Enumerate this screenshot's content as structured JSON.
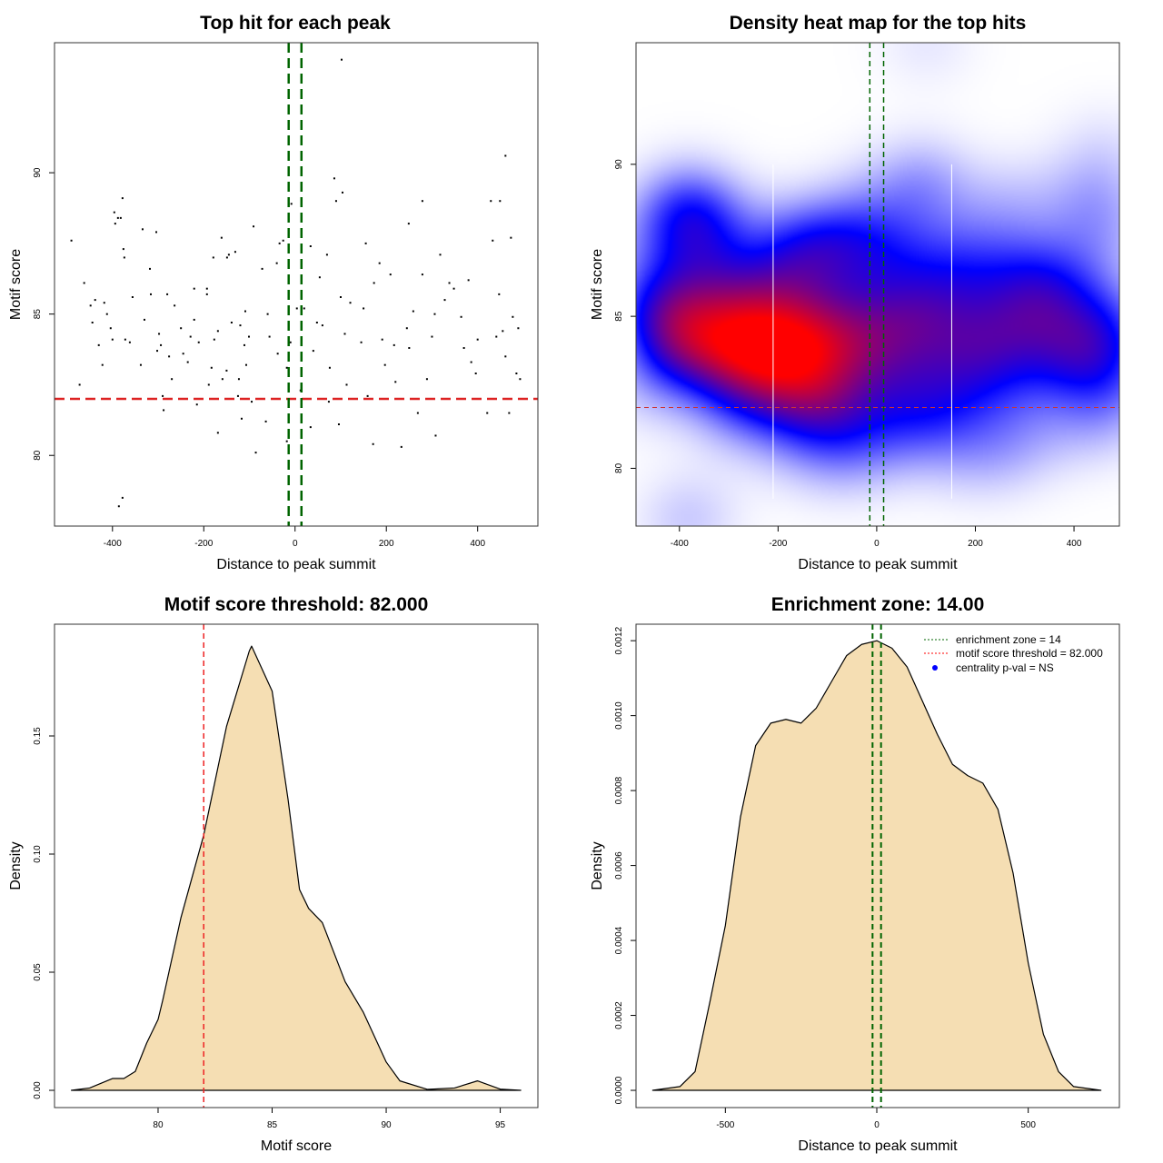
{
  "chart_data": [
    {
      "type": "scatter",
      "title": "Top hit for each peak",
      "xlabel": "Distance to peak summit",
      "ylabel": "Motif score",
      "xticks": [
        -400,
        -200,
        0,
        200,
        400
      ],
      "yticks": [
        80,
        85,
        90
      ],
      "xlim": [
        -527,
        532
      ],
      "ylim": [
        77.5,
        94.6
      ],
      "threshold": 82,
      "enrichment_zone": [
        -14,
        14
      ],
      "threshold_color": "#dd2222",
      "zone_color": "#006400",
      "points": [
        [
          -490,
          87.6
        ],
        [
          -462,
          86.1
        ],
        [
          -472,
          82.5
        ],
        [
          -448,
          85.3
        ],
        [
          -438,
          85.5
        ],
        [
          -444,
          84.7
        ],
        [
          -422,
          83.2
        ],
        [
          -418,
          85.4
        ],
        [
          -412,
          85.0
        ],
        [
          -404,
          84.5
        ],
        [
          -400,
          84.1
        ],
        [
          -396,
          88.6
        ],
        [
          -394,
          88.2
        ],
        [
          -388,
          88.4
        ],
        [
          -382,
          88.4
        ],
        [
          -378,
          89.1
        ],
        [
          -376,
          87.3
        ],
        [
          -374,
          87.0
        ],
        [
          -372,
          84.1
        ],
        [
          -362,
          84.0
        ],
        [
          -356,
          85.6
        ],
        [
          -338,
          83.2
        ],
        [
          -334,
          88.0
        ],
        [
          -318,
          86.6
        ],
        [
          -316,
          85.7
        ],
        [
          -304,
          87.9
        ],
        [
          -302,
          83.7
        ],
        [
          -298,
          84.3
        ],
        [
          -294,
          83.9
        ],
        [
          -290,
          82.1
        ],
        [
          -288,
          81.6
        ],
        [
          -280,
          85.7
        ],
        [
          -276,
          83.5
        ],
        [
          -264,
          85.3
        ],
        [
          -270,
          82.7
        ],
        [
          -245,
          83.6
        ],
        [
          -235,
          83.3
        ],
        [
          -229,
          84.2
        ],
        [
          -221,
          85.9
        ],
        [
          -221,
          84.8
        ],
        [
          -215,
          81.8
        ],
        [
          -211,
          84.0
        ],
        [
          -189,
          82.5
        ],
        [
          -193,
          85.9
        ],
        [
          -193,
          85.7
        ],
        [
          -183,
          83.1
        ],
        [
          -179,
          87.0
        ],
        [
          -177,
          84.1
        ],
        [
          -169,
          84.4
        ],
        [
          -169,
          80.8
        ],
        [
          -161,
          87.7
        ],
        [
          -159,
          82.7
        ],
        [
          -149,
          87.0
        ],
        [
          -145,
          87.1
        ],
        [
          -139,
          84.7
        ],
        [
          -131,
          87.2
        ],
        [
          -125,
          82.1
        ],
        [
          -123,
          82.7
        ],
        [
          -117,
          81.3
        ],
        [
          -111,
          83.9
        ],
        [
          -109,
          85.1
        ],
        [
          -107,
          83.2
        ],
        [
          -101,
          84.2
        ],
        [
          -95,
          81.9
        ],
        [
          -91,
          88.1
        ],
        [
          -86,
          80.1
        ],
        [
          -72,
          86.6
        ],
        [
          -64,
          81.2
        ],
        [
          -56,
          84.2
        ],
        [
          -50,
          82.0
        ],
        [
          -40,
          86.8
        ],
        [
          -38,
          83.6
        ],
        [
          -34,
          87.5
        ],
        [
          -26,
          87.6
        ],
        [
          -18,
          83.1
        ],
        [
          -18,
          80.5
        ],
        [
          -8,
          88.9
        ],
        [
          4,
          85.2
        ],
        [
          12,
          82.3
        ],
        [
          20,
          85.2
        ],
        [
          34,
          87.4
        ],
        [
          34,
          81.0
        ],
        [
          40,
          83.7
        ],
        [
          48,
          84.7
        ],
        [
          54,
          86.3
        ],
        [
          70,
          87.1
        ],
        [
          74,
          81.9
        ],
        [
          76,
          83.1
        ],
        [
          86,
          89.8
        ],
        [
          90,
          89.0
        ],
        [
          96,
          81.1
        ],
        [
          100,
          85.6
        ],
        [
          104,
          89.3
        ],
        [
          102,
          94.0
        ],
        [
          109,
          84.3
        ],
        [
          113,
          82.5
        ],
        [
          121,
          85.4
        ],
        [
          145,
          84.0
        ],
        [
          155,
          87.5
        ],
        [
          159,
          82.1
        ],
        [
          171,
          80.4
        ],
        [
          173,
          86.1
        ],
        [
          185,
          86.8
        ],
        [
          191,
          84.1
        ],
        [
          197,
          83.2
        ],
        [
          209,
          86.4
        ],
        [
          217,
          83.9
        ],
        [
          233,
          80.3
        ],
        [
          245,
          84.5
        ],
        [
          249,
          88.2
        ],
        [
          259,
          85.1
        ],
        [
          269,
          81.5
        ],
        [
          279,
          89.0
        ],
        [
          279,
          86.4
        ],
        [
          289,
          82.7
        ],
        [
          306,
          85.0
        ],
        [
          308,
          80.7
        ],
        [
          318,
          87.1
        ],
        [
          328,
          85.5
        ],
        [
          338,
          86.1
        ],
        [
          348,
          85.9
        ],
        [
          364,
          84.9
        ],
        [
          370,
          83.8
        ],
        [
          380,
          86.2
        ],
        [
          386,
          83.3
        ],
        [
          396,
          82.9
        ],
        [
          429,
          89.0
        ],
        [
          433,
          87.6
        ],
        [
          441,
          84.2
        ],
        [
          447,
          85.7
        ],
        [
          449,
          89.0
        ],
        [
          455,
          84.4
        ],
        [
          461,
          83.5
        ],
        [
          461,
          90.6
        ],
        [
          469,
          81.5
        ],
        [
          473,
          87.7
        ],
        [
          477,
          84.9
        ],
        [
          485,
          82.9
        ],
        [
          489,
          84.5
        ],
        [
          493,
          82.7
        ],
        [
          421,
          81.5
        ],
        [
          -386,
          78.2
        ],
        [
          -378,
          78.5
        ],
        [
          -60,
          85.0
        ],
        [
          -150,
          83.0
        ],
        [
          130,
          82.0
        ],
        [
          -250,
          84.5
        ],
        [
          60,
          84.6
        ],
        [
          220,
          82.6
        ],
        [
          -330,
          84.8
        ],
        [
          150,
          85.2
        ],
        [
          300,
          84.2
        ],
        [
          -10,
          84.0
        ],
        [
          -120,
          84.6
        ],
        [
          400,
          84.1
        ],
        [
          -430,
          83.9
        ],
        [
          250,
          83.8
        ]
      ]
    },
    {
      "type": "heatmap",
      "title": "Density heat map for the top hits",
      "xlabel": "Distance to peak summit",
      "ylabel": "Motif score",
      "xticks": [
        -400,
        -200,
        0,
        200,
        400
      ],
      "yticks": [
        80,
        85,
        90
      ],
      "xlim": [
        -488,
        492
      ],
      "ylim": [
        78.1,
        94.0
      ],
      "threshold": 82,
      "enrichment_zone": [
        -14,
        14
      ],
      "color_low": "#ffffff",
      "color_mid": "#0000ff",
      "color_high": "#ff0000",
      "source": "density of top-hit points"
    },
    {
      "type": "area",
      "title": "Motif score threshold: 82.000",
      "xlabel": "Motif score",
      "ylabel": "Density",
      "xticks": [
        80,
        85,
        90,
        95
      ],
      "yticks": [
        0.0,
        0.05,
        0.1,
        0.15
      ],
      "ytick_labels": [
        "0.00",
        "0.05",
        "0.10",
        "0.15"
      ],
      "xlim": [
        75.46,
        96.65
      ],
      "ylim": [
        -0.0073,
        0.1973
      ],
      "threshold": 82,
      "fill": "#f5deb3",
      "x": [
        76.2,
        77,
        78,
        78.5,
        79,
        79.5,
        80,
        80.2,
        81,
        82,
        83,
        84,
        84.1,
        85,
        85.7,
        86.2,
        86.6,
        87.2,
        88.2,
        89,
        90,
        90.6,
        91.8,
        93,
        94,
        95,
        95.9
      ],
      "y": [
        0,
        0.001,
        0.005,
        0.005,
        0.008,
        0.02,
        0.03,
        0.038,
        0.073,
        0.108,
        0.154,
        0.186,
        0.188,
        0.169,
        0.123,
        0.085,
        0.077,
        0.071,
        0.046,
        0.033,
        0.012,
        0.004,
        0.0004,
        0.001,
        0.004,
        0.0005,
        0
      ]
    },
    {
      "type": "area",
      "title": "Enrichment zone: 14.00",
      "xlabel": "Distance to peak summit",
      "ylabel": "Density",
      "xticks": [
        -500,
        0,
        500
      ],
      "yticks": [
        0,
        0.0002,
        0.0004,
        0.0006,
        0.0008,
        0.001,
        0.0012
      ],
      "ytick_labels": [
        "0.0000",
        "0.0002",
        "0.0004",
        "0.0006",
        "0.0008",
        "0.0010",
        "0.0012"
      ],
      "xlim": [
        -795,
        801
      ],
      "ylim": [
        -4.6e-05,
        0.001244
      ],
      "enrichment_zone": [
        -14,
        14
      ],
      "fill": "#f5deb3",
      "x": [
        -740,
        -650,
        -600,
        -550,
        -500,
        -450,
        -400,
        -350,
        -300,
        -250,
        -200,
        -150,
        -100,
        -50,
        0,
        50,
        100,
        150,
        200,
        250,
        300,
        350,
        400,
        450,
        500,
        550,
        600,
        650,
        740
      ],
      "y": [
        0,
        1e-05,
        5e-05,
        0.00024,
        0.00044,
        0.00073,
        0.00092,
        0.00098,
        0.00099,
        0.00098,
        0.00102,
        0.00109,
        0.00116,
        0.00119,
        0.0012,
        0.00118,
        0.00113,
        0.00104,
        0.00095,
        0.00087,
        0.00084,
        0.00082,
        0.00075,
        0.00058,
        0.00034,
        0.00015,
        5e-05,
        1e-05,
        0
      ],
      "legend": {
        "position": "top-right",
        "items": [
          {
            "label": "enrichment zone = 14",
            "color": "#006400",
            "style": "dotted"
          },
          {
            "label": "motif score threshold = 82.000",
            "color": "#ff0000",
            "style": "dotted"
          },
          {
            "label": "centrality p-val = NS",
            "color": "#0000ff",
            "style": "point"
          }
        ]
      }
    }
  ]
}
